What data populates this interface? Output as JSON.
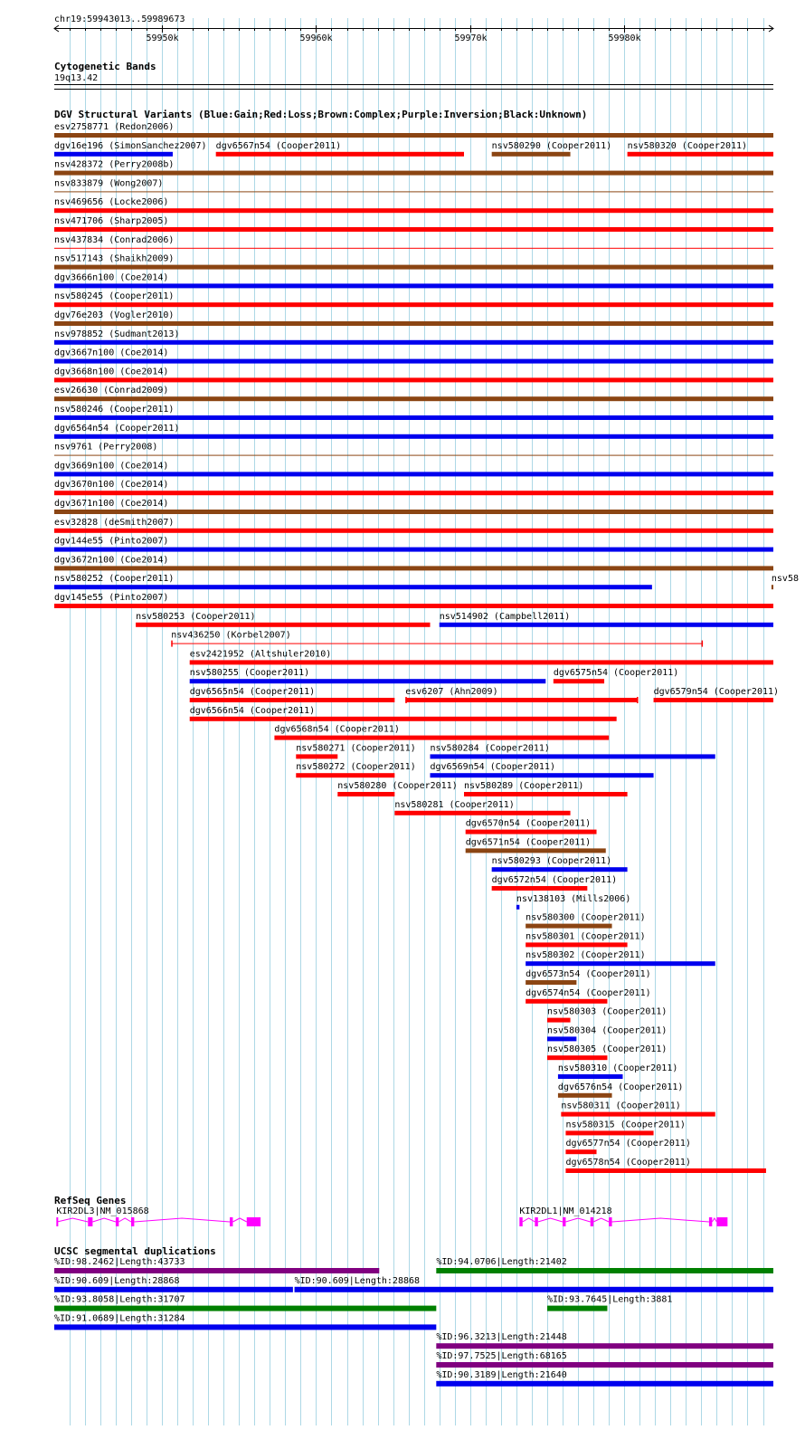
{
  "region": {
    "label": "chr19:59943013..59989673",
    "start": 59943013,
    "end": 59989673,
    "ticks": [
      {
        "pos": 59950000,
        "label": "59950k"
      },
      {
        "pos": 59960000,
        "label": "59960k"
      },
      {
        "pos": 59970000,
        "label": "59970k"
      },
      {
        "pos": 59980000,
        "label": "59980k"
      }
    ]
  },
  "colors": {
    "gain": "#0000ee",
    "loss": "#ff0000",
    "complex": "#8b4513",
    "inversion": "#800080",
    "unknown": "#000000",
    "gene": "#ff00ff",
    "segdup_green": "#008000",
    "grid": "#add8e6"
  },
  "cytobands": {
    "title": "Cytogenetic Bands",
    "band": "19q13.42"
  },
  "dgv": {
    "title": "DGV Structural Variants (Blue:Gain;Red:Loss;Brown:Complex;Purple:Inversion;Black:Unknown)",
    "features": [
      {
        "label": "esv2758771 (Redon2006)",
        "start": 59943013,
        "end": 59989673,
        "type": "complex",
        "row": 0
      },
      {
        "label": "dgv16e196 (SimonSanchez2007)",
        "start": 59943013,
        "end": 59950700,
        "type": "gain",
        "row": 1
      },
      {
        "label": "dgv6567n54 (Cooper2011)",
        "start": 59953500,
        "end": 59969600,
        "type": "loss",
        "row": 1
      },
      {
        "label": "nsv580290 (Cooper2011)",
        "start": 59971400,
        "end": 59976500,
        "type": "complex",
        "row": 1
      },
      {
        "label": "nsv580320 (Cooper2011)",
        "start": 59980200,
        "end": 59989673,
        "type": "loss",
        "row": 1
      },
      {
        "label": "nsv428372 (Perry2008b)",
        "start": 59943013,
        "end": 59989673,
        "type": "complex",
        "row": 2
      },
      {
        "label": "nsv833879 (Wong2007)",
        "start": 59943013,
        "end": 59989673,
        "type": "complex",
        "row": 3,
        "thin": true
      },
      {
        "label": "nsv469656 (Locke2006)",
        "start": 59943013,
        "end": 59989673,
        "type": "loss",
        "row": 4
      },
      {
        "label": "nsv471706 (Sharp2005)",
        "start": 59943013,
        "end": 59989673,
        "type": "loss",
        "row": 5
      },
      {
        "label": "nsv437834 (Conrad2006)",
        "start": 59943013,
        "end": 59989673,
        "type": "loss",
        "row": 6,
        "thin": true
      },
      {
        "label": "nsv517143 (Shaikh2009)",
        "start": 59943013,
        "end": 59989673,
        "type": "complex",
        "row": 7
      },
      {
        "label": "dgv3666n100 (Coe2014)",
        "start": 59943013,
        "end": 59989673,
        "type": "gain",
        "row": 8
      },
      {
        "label": "nsv580245 (Cooper2011)",
        "start": 59943013,
        "end": 59989673,
        "type": "loss",
        "row": 9
      },
      {
        "label": "dgv76e203 (Vogler2010)",
        "start": 59943013,
        "end": 59989673,
        "type": "complex",
        "row": 10
      },
      {
        "label": "nsv978852 (Sudmant2013)",
        "start": 59943013,
        "end": 59989673,
        "type": "gain",
        "row": 11
      },
      {
        "label": "dgv3667n100 (Coe2014)",
        "start": 59943013,
        "end": 59989673,
        "type": "gain",
        "row": 12
      },
      {
        "label": "dgv3668n100 (Coe2014)",
        "start": 59943013,
        "end": 59989673,
        "type": "loss",
        "row": 13
      },
      {
        "label": "esv26630 (Conrad2009)",
        "start": 59943013,
        "end": 59989673,
        "type": "complex",
        "row": 14
      },
      {
        "label": "nsv580246 (Cooper2011)",
        "start": 59943013,
        "end": 59989673,
        "type": "gain",
        "row": 15
      },
      {
        "label": "dgv6564n54 (Cooper2011)",
        "start": 59943013,
        "end": 59989673,
        "type": "gain",
        "row": 16
      },
      {
        "label": "nsv9761 (Perry2008)",
        "start": 59943013,
        "end": 59989673,
        "type": "complex",
        "row": 17,
        "thin": true
      },
      {
        "label": "dgv3669n100 (Coe2014)",
        "start": 59943013,
        "end": 59989673,
        "type": "gain",
        "row": 18
      },
      {
        "label": "dgv3670n100 (Coe2014)",
        "start": 59943013,
        "end": 59989673,
        "type": "loss",
        "row": 19
      },
      {
        "label": "dgv3671n100 (Coe2014)",
        "start": 59943013,
        "end": 59989673,
        "type": "complex",
        "row": 20
      },
      {
        "label": "esv32828 (deSmith2007)",
        "start": 59943013,
        "end": 59989673,
        "type": "loss",
        "row": 21
      },
      {
        "label": "dgv144e55 (Pinto2007)",
        "start": 59943013,
        "end": 59989673,
        "type": "gain",
        "row": 22
      },
      {
        "label": "dgv3672n100 (Coe2014)",
        "start": 59943013,
        "end": 59989673,
        "type": "complex",
        "row": 23
      },
      {
        "label": "nsv580252 (Cooper2011)",
        "start": 59943013,
        "end": 59981800,
        "type": "gain",
        "row": 24
      },
      {
        "label": "nsv58",
        "start": 59989550,
        "end": 59989673,
        "type": "complex",
        "row": 24
      },
      {
        "label": "dgv145e55 (Pinto2007)",
        "start": 59943013,
        "end": 59989673,
        "type": "loss",
        "row": 25
      },
      {
        "label": "nsv580253 (Cooper2011)",
        "start": 59948300,
        "end": 59967400,
        "type": "loss",
        "row": 26
      },
      {
        "label": "nsv514902 (Campbell2011)",
        "start": 59968000,
        "end": 59989673,
        "type": "gain",
        "row": 26
      },
      {
        "label": "nsv436250 (Korbel2007)",
        "start": 59950600,
        "end": 59985100,
        "type": "loss",
        "row": 27,
        "thin": true,
        "caps": true
      },
      {
        "label": "esv2421952 (Altshuler2010)",
        "start": 59951800,
        "end": 59989673,
        "type": "loss",
        "row": 28
      },
      {
        "label": "nsv580255 (Cooper2011)",
        "start": 59951800,
        "end": 59974900,
        "type": "gain",
        "row": 29
      },
      {
        "label": "dgv6575n54 (Cooper2011)",
        "start": 59975400,
        "end": 59978700,
        "type": "loss",
        "row": 29
      },
      {
        "label": "dgv6565n54 (Cooper2011)",
        "start": 59951800,
        "end": 59965100,
        "type": "loss",
        "row": 30
      },
      {
        "label": "esv6207 (Ahn2009)",
        "start": 59965800,
        "end": 59980900,
        "type": "loss",
        "row": 30,
        "caps": true
      },
      {
        "label": "dgv6579n54 (Cooper2011)",
        "start": 59981900,
        "end": 59989673,
        "type": "loss",
        "row": 30
      },
      {
        "label": "dgv6566n54 (Cooper2011)",
        "start": 59951800,
        "end": 59979500,
        "type": "loss",
        "row": 31
      },
      {
        "label": "dgv6568n54 (Cooper2011)",
        "start": 59957300,
        "end": 59979000,
        "type": "loss",
        "row": 32
      },
      {
        "label": "nsv580271 (Cooper2011)",
        "start": 59958700,
        "end": 59961400,
        "type": "loss",
        "row": 33
      },
      {
        "label": "nsv580284 (Cooper2011)",
        "start": 59967400,
        "end": 59985900,
        "type": "gain",
        "row": 33
      },
      {
        "label": "nsv580272 (Cooper2011)",
        "start": 59958700,
        "end": 59965100,
        "type": "loss",
        "row": 34
      },
      {
        "label": "dgv6569n54 (Cooper2011)",
        "start": 59967400,
        "end": 59981900,
        "type": "gain",
        "row": 34
      },
      {
        "label": "nsv580280 (Cooper2011)",
        "start": 59961400,
        "end": 59965100,
        "type": "loss",
        "row": 35
      },
      {
        "label": "nsv580289 (Cooper2011)",
        "start": 59969600,
        "end": 59980200,
        "type": "loss",
        "row": 35
      },
      {
        "label": "nsv580281 (Cooper2011)",
        "start": 59965100,
        "end": 59976500,
        "type": "loss",
        "row": 36
      },
      {
        "label": "dgv6570n54 (Cooper2011)",
        "start": 59969700,
        "end": 59978200,
        "type": "loss",
        "row": 37
      },
      {
        "label": "dgv6571n54 (Cooper2011)",
        "start": 59969700,
        "end": 59978800,
        "type": "complex",
        "row": 38
      },
      {
        "label": "nsv580293 (Cooper2011)",
        "start": 59971400,
        "end": 59980200,
        "type": "gain",
        "row": 39
      },
      {
        "label": "dgv6572n54 (Cooper2011)",
        "start": 59971400,
        "end": 59977600,
        "type": "loss",
        "row": 40
      },
      {
        "label": "nsv138103 (Mills2006)",
        "start": 59973000,
        "end": 59973200,
        "type": "gain",
        "row": 41
      },
      {
        "label": "nsv580300 (Cooper2011)",
        "start": 59973600,
        "end": 59979200,
        "type": "complex",
        "row": 42
      },
      {
        "label": "nsv580301 (Cooper2011)",
        "start": 59973600,
        "end": 59980200,
        "type": "loss",
        "row": 43
      },
      {
        "label": "nsv580302 (Cooper2011)",
        "start": 59973600,
        "end": 59985900,
        "type": "gain",
        "row": 44
      },
      {
        "label": "dgv6573n54 (Cooper2011)",
        "start": 59973600,
        "end": 59976900,
        "type": "complex",
        "row": 45
      },
      {
        "label": "dgv6574n54 (Cooper2011)",
        "start": 59973600,
        "end": 59978900,
        "type": "loss",
        "row": 46
      },
      {
        "label": "nsv580303 (Cooper2011)",
        "start": 59975000,
        "end": 59976500,
        "type": "loss",
        "row": 47
      },
      {
        "label": "nsv580304 (Cooper2011)",
        "start": 59975000,
        "end": 59976900,
        "type": "gain",
        "row": 48
      },
      {
        "label": "nsv580305 (Cooper2011)",
        "start": 59975000,
        "end": 59978900,
        "type": "loss",
        "row": 49
      },
      {
        "label": "nsv580310 (Cooper2011)",
        "start": 59975700,
        "end": 59979900,
        "type": "gain",
        "row": 50
      },
      {
        "label": "dgv6576n54 (Cooper2011)",
        "start": 59975700,
        "end": 59979200,
        "type": "complex",
        "row": 51
      },
      {
        "label": "nsv580311 (Cooper2011)",
        "start": 59975900,
        "end": 59985900,
        "type": "loss",
        "row": 52
      },
      {
        "label": "nsv580315 (Cooper2011)",
        "start": 59976200,
        "end": 59981900,
        "type": "loss",
        "row": 53
      },
      {
        "label": "dgv6577n54 (Cooper2011)",
        "start": 59976200,
        "end": 59978200,
        "type": "loss",
        "row": 54
      },
      {
        "label": "dgv6578n54 (Cooper2011)",
        "start": 59976200,
        "end": 59989200,
        "type": "loss",
        "row": 55
      }
    ]
  },
  "refseq": {
    "title": "RefSeq Genes",
    "genes": [
      {
        "label": "KIR2DL3|NM_015868",
        "start": 59943150,
        "end": 59956400,
        "exons": [
          [
            59943150,
            59943200
          ],
          [
            59945200,
            59945500
          ],
          [
            59947000,
            59947200
          ],
          [
            59948000,
            59948200
          ],
          [
            59954400,
            59954600
          ],
          [
            59955500,
            59956400
          ]
        ]
      },
      {
        "label": "KIR2DL1|NM_014218",
        "start": 59973200,
        "end": 59986700,
        "exons": [
          [
            59973200,
            59973400
          ],
          [
            59974200,
            59974400
          ],
          [
            59976000,
            59976200
          ],
          [
            59977800,
            59978000
          ],
          [
            59979000,
            59979200
          ],
          [
            59985500,
            59985700
          ],
          [
            59986000,
            59986700
          ]
        ]
      }
    ]
  },
  "segdups": {
    "title": "UCSC segmental duplications",
    "features": [
      {
        "label": "%ID:98.2462|Length:43733",
        "start": 59943013,
        "end": 59964100,
        "color": "inversion",
        "row": 0
      },
      {
        "label": "%ID:94.0706|Length:21402",
        "start": 59967800,
        "end": 59989673,
        "color": "segdup_green",
        "row": 0
      },
      {
        "label": "%ID:90.609|Length:28868",
        "start": 59943013,
        "end": 59958500,
        "color": "gain",
        "row": 1
      },
      {
        "label": "%ID:90.609|Length:28868",
        "start": 59958600,
        "end": 59989673,
        "color": "gain",
        "row": 1
      },
      {
        "label": "%ID:93.8058|Length:31707",
        "start": 59943013,
        "end": 59967800,
        "color": "segdup_green",
        "row": 2
      },
      {
        "label": "%ID:93.7645|Length:3881",
        "start": 59975000,
        "end": 59978900,
        "color": "segdup_green",
        "row": 2
      },
      {
        "label": "%ID:91.0689|Length:31284",
        "start": 59943013,
        "end": 59967800,
        "color": "gain",
        "row": 3
      },
      {
        "label": "%ID:96.3213|Length:21448",
        "start": 59967800,
        "end": 59989673,
        "color": "inversion",
        "row": 4
      },
      {
        "label": "%ID:97.7525|Length:68165",
        "start": 59967800,
        "end": 59989673,
        "color": "inversion",
        "row": 5
      },
      {
        "label": "%ID:90.3189|Length:21640",
        "start": 59967800,
        "end": 59989673,
        "color": "gain",
        "row": 6
      }
    ]
  }
}
